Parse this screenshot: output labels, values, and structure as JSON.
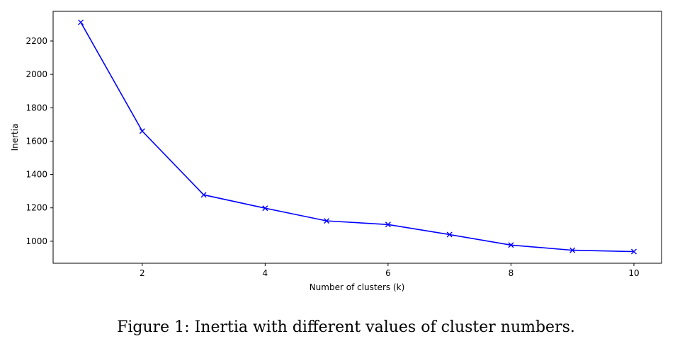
{
  "chart_data": {
    "type": "line",
    "xlabel": "Number of clusters (k)",
    "ylabel": "Inertia",
    "x": [
      1,
      2,
      3,
      4,
      5,
      6,
      7,
      8,
      9,
      10
    ],
    "series": [
      {
        "values": [
          2312,
          1660,
          1278,
          1198,
          1122,
          1100,
          1040,
          977,
          946,
          938
        ],
        "color": "#0000ff",
        "marker": "x"
      }
    ],
    "xlim": [
      0.55,
      10.45
    ],
    "ylim": [
      868,
      2378
    ],
    "xticks": [
      2,
      4,
      6,
      8,
      10
    ],
    "yticks": [
      1000,
      1200,
      1400,
      1600,
      1800,
      2000,
      2200
    ],
    "grid": false,
    "legend": "none"
  },
  "caption": "Figure 1: Inertia with different values of cluster numbers."
}
